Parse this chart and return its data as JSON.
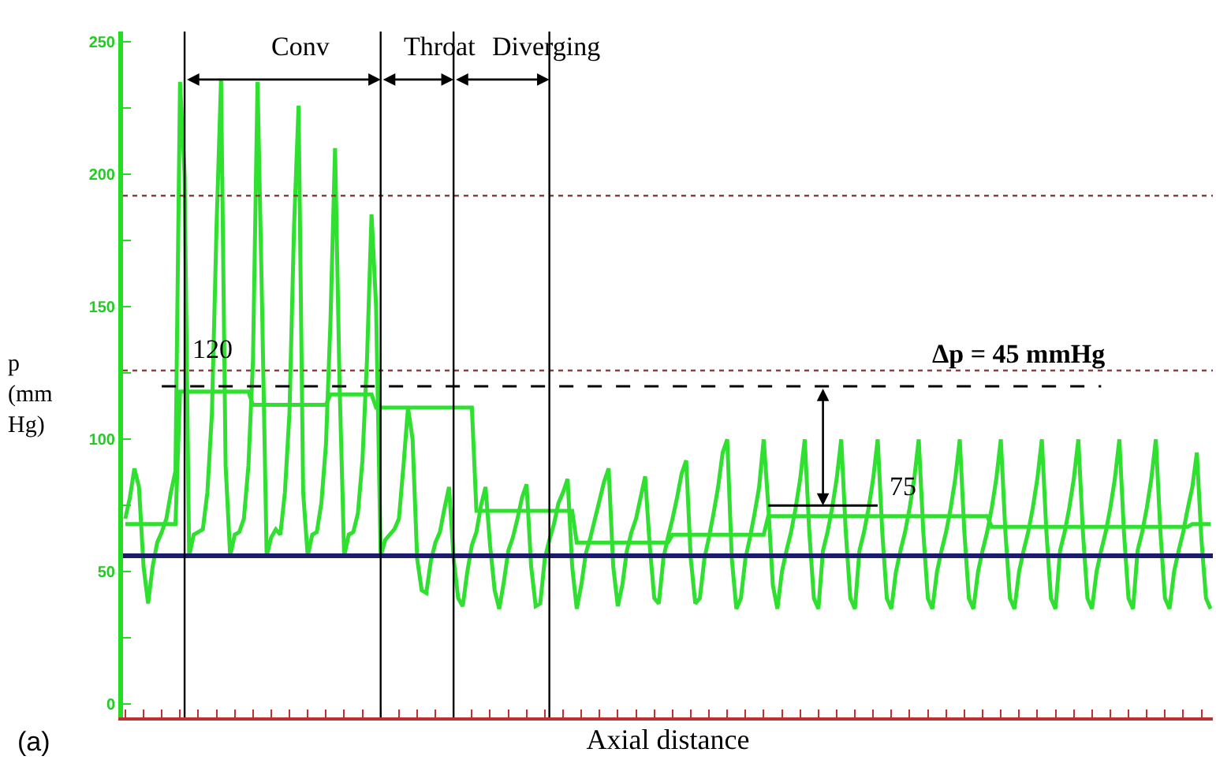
{
  "chart_data": {
    "type": "line",
    "xlabel": "Axial distance",
    "ylabel": "p (mm Hg)",
    "marker": "none",
    "grid": false,
    "ylim": [
      -5,
      254
    ],
    "yticks": [
      0,
      {
        "value": 25,
        "label": null
      },
      50,
      {
        "value": 75,
        "label": null
      },
      100,
      {
        "value": 125,
        "label": null
      },
      150,
      {
        "value": 175,
        "label": null
      },
      200,
      {
        "value": 225,
        "label": null
      },
      250
    ],
    "categories": [
      null,
      null,
      null,
      null,
      null,
      null,
      null,
      null,
      null,
      null,
      null,
      null,
      null,
      null,
      null,
      null,
      null,
      null,
      null,
      null,
      null,
      null,
      null,
      null,
      null,
      null,
      null,
      null,
      null,
      null,
      null,
      null,
      null,
      null,
      null,
      null,
      null,
      null,
      null,
      null,
      null,
      null,
      null,
      null,
      null,
      null,
      null,
      null,
      null,
      null,
      null,
      null,
      null,
      null,
      null,
      null,
      null,
      null,
      null,
      null,
      null,
      null,
      null,
      null,
      null,
      null,
      null,
      null,
      null,
      null,
      null,
      null,
      null,
      null,
      null,
      null,
      null,
      null,
      null,
      null,
      null,
      null,
      null,
      null,
      null,
      null,
      null,
      null,
      null,
      null,
      null,
      null,
      null,
      null,
      null,
      null,
      null,
      null,
      null,
      null,
      null,
      null,
      null,
      null,
      null,
      null,
      null,
      null,
      null,
      null,
      null,
      null,
      null,
      null,
      null,
      null,
      null,
      null,
      null,
      null,
      null,
      null,
      null,
      null,
      null,
      null,
      null,
      null,
      null,
      null,
      null,
      null,
      null,
      null,
      null,
      null,
      null,
      null,
      null,
      null,
      null,
      null,
      null,
      null,
      null,
      null,
      null,
      null,
      null,
      null,
      null,
      null,
      null,
      null,
      null,
      null,
      null,
      null,
      null,
      null,
      null,
      null,
      null,
      null,
      null,
      null,
      null,
      null,
      null,
      null,
      null,
      null,
      null,
      null,
      null,
      null,
      null,
      null,
      null,
      null,
      null,
      null,
      null,
      null,
      null,
      null,
      null,
      null,
      null,
      null,
      null,
      null,
      null,
      null,
      null,
      null,
      null,
      null,
      null,
      null,
      null,
      null,
      null,
      null,
      null,
      null,
      null,
      null,
      null,
      null,
      null,
      null,
      null,
      null,
      null,
      null,
      null,
      null,
      null,
      null,
      null,
      null,
      null,
      null,
      null,
      null,
      null,
      null,
      null,
      null,
      null,
      null,
      null,
      null,
      null,
      null,
      null,
      null,
      null
    ],
    "series": [
      {
        "color": "#30e030",
        "values": [
          70,
          78,
          89,
          82,
          52,
          38,
          52,
          61,
          65,
          70,
          80,
          88,
          235,
          200,
          56,
          64,
          65,
          66,
          80,
          110,
          180,
          236,
          90,
          56,
          64,
          65,
          70,
          90,
          130,
          235,
          150,
          56,
          63,
          66,
          64,
          80,
          110,
          180,
          226,
          80,
          56,
          64,
          65,
          76,
          98,
          145,
          210,
          120,
          56,
          64,
          65,
          72,
          92,
          130,
          185,
          150,
          56,
          62,
          64,
          66,
          70,
          90,
          112,
          100,
          55,
          43,
          42,
          54,
          61,
          65,
          74,
          82,
          55,
          40,
          37,
          50,
          60,
          65,
          75,
          82,
          60,
          43,
          36,
          46,
          58,
          63,
          70,
          78,
          83,
          52,
          37,
          38,
          55,
          62,
          68,
          76,
          80,
          85,
          52,
          36,
          45,
          57,
          63,
          70,
          77,
          84,
          89,
          52,
          37,
          45,
          58,
          65,
          70,
          78,
          86,
          60,
          40,
          38,
          55,
          63,
          70,
          78,
          87,
          92,
          55,
          38,
          40,
          55,
          63,
          72,
          82,
          95,
          100,
          55,
          36,
          40,
          55,
          63,
          72,
          82,
          100,
          75,
          45,
          36,
          50,
          58,
          65,
          74,
          85,
          100,
          65,
          40,
          36,
          58,
          65,
          74,
          85,
          100,
          65,
          40,
          36,
          58,
          65,
          74,
          85,
          100,
          65,
          40,
          36,
          50,
          58,
          65,
          74,
          85,
          100,
          65,
          40,
          36,
          50,
          58,
          65,
          74,
          85,
          100,
          65,
          40,
          36,
          50,
          58,
          65,
          74,
          85,
          100,
          65,
          40,
          36,
          50,
          58,
          65,
          74,
          85,
          100,
          65,
          40,
          36,
          58,
          65,
          74,
          85,
          100,
          65,
          40,
          36,
          50,
          58,
          65,
          74,
          85,
          100,
          65,
          40,
          36,
          58,
          65,
          74,
          85,
          100,
          65,
          40,
          36,
          50,
          58,
          65,
          74,
          82,
          95,
          62,
          40,
          36
        ]
      },
      {
        "color": "#30e030",
        "values": [
          68,
          68,
          68,
          68,
          68,
          68,
          68,
          68,
          68,
          68,
          68,
          68,
          118,
          118,
          118,
          118,
          118,
          118,
          118,
          118,
          118,
          118,
          118,
          118,
          118,
          118,
          118,
          118,
          113,
          113,
          113,
          113,
          113,
          113,
          113,
          113,
          113,
          113,
          113,
          113,
          113,
          113,
          113,
          113,
          113,
          117,
          117,
          117,
          117,
          117,
          117,
          117,
          117,
          117,
          117,
          112,
          112,
          112,
          112,
          112,
          112,
          112,
          112,
          112,
          112,
          112,
          112,
          112,
          112,
          112,
          112,
          112,
          112,
          112,
          112,
          112,
          112,
          73,
          73,
          73,
          73,
          73,
          73,
          73,
          73,
          73,
          73,
          73,
          73,
          73,
          73,
          73,
          73,
          73,
          73,
          73,
          73,
          73,
          73,
          61,
          61,
          61,
          61,
          61,
          61,
          61,
          61,
          61,
          61,
          61,
          61,
          61,
          61,
          61,
          61,
          61,
          61,
          61,
          61,
          61,
          64,
          64,
          64,
          64,
          64,
          64,
          64,
          64,
          64,
          64,
          64,
          64,
          64,
          64,
          64,
          64,
          64,
          64,
          64,
          64,
          64,
          71,
          71,
          71,
          71,
          71,
          71,
          71,
          71,
          71,
          71,
          71,
          71,
          71,
          71,
          71,
          71,
          71,
          71,
          71,
          71,
          71,
          71,
          71,
          71,
          71,
          71,
          71,
          71,
          71,
          71,
          71,
          71,
          71,
          71,
          71,
          71,
          71,
          71,
          71,
          71,
          71,
          71,
          71,
          71,
          71,
          71,
          71,
          71,
          71,
          67,
          67,
          67,
          67,
          67,
          67,
          67,
          67,
          67,
          67,
          67,
          67,
          67,
          67,
          67,
          67,
          67,
          67,
          67,
          67,
          67,
          67,
          67,
          67,
          67,
          67,
          67,
          67,
          67,
          67,
          67,
          67,
          67,
          67,
          67,
          67,
          67,
          67,
          67,
          67,
          67,
          67,
          67,
          67,
          68,
          68,
          68,
          68,
          68
        ]
      },
      {
        "color": "#000000",
        "line_style": "dashed",
        "values": [
          null,
          null,
          null,
          null,
          null,
          null,
          null,
          null,
          120,
          120,
          120,
          120,
          120,
          120,
          120,
          120,
          120,
          120,
          120,
          120,
          120,
          120,
          120,
          120,
          120,
          120,
          120,
          120,
          120,
          120,
          120,
          120,
          120,
          120,
          120,
          120,
          120,
          120,
          120,
          120,
          120,
          120,
          120,
          120,
          120,
          120,
          120,
          120,
          120,
          120,
          120,
          120,
          120,
          120,
          120,
          120,
          120,
          120,
          120,
          120,
          120,
          120,
          120,
          120,
          120,
          120,
          120,
          120,
          120,
          120,
          120,
          120,
          120,
          120,
          120,
          120,
          120,
          120,
          120,
          120,
          120,
          120,
          120,
          120,
          120,
          120,
          120,
          120,
          120,
          120,
          120,
          120,
          120,
          120,
          120,
          120,
          120,
          120,
          120,
          120,
          120,
          120,
          120,
          120,
          120,
          120,
          120,
          120,
          120,
          120,
          120,
          120,
          120,
          120,
          120,
          120,
          120,
          120,
          120,
          120,
          120,
          120,
          120,
          120,
          120,
          120,
          120,
          120,
          120,
          120,
          120,
          120,
          120,
          120,
          120,
          120,
          120,
          120,
          120,
          120,
          120,
          120,
          120,
          120,
          120,
          120,
          120,
          120,
          120,
          120,
          120,
          120,
          120,
          120,
          120,
          120,
          120,
          120,
          120,
          120,
          120,
          120,
          120,
          120,
          120,
          120,
          120,
          120,
          120,
          120,
          120,
          120,
          120,
          120,
          120,
          120,
          120,
          120,
          120,
          120,
          120,
          120,
          120,
          120,
          120,
          120,
          120,
          120,
          120,
          120,
          120,
          120,
          120,
          120,
          120,
          120,
          120,
          120,
          120,
          120,
          120,
          120,
          120,
          120,
          120,
          120,
          120,
          120,
          120,
          120,
          120,
          120,
          120,
          120,
          120,
          null,
          null,
          null,
          null,
          null,
          null,
          null,
          null,
          null,
          null,
          null,
          null,
          null,
          null,
          null,
          null,
          null,
          null,
          null,
          null,
          null,
          null,
          null,
          null
        ]
      },
      {
        "color": "#000000",
        "values": [
          null,
          null,
          null,
          null,
          null,
          null,
          null,
          null,
          null,
          null,
          null,
          null,
          null,
          null,
          null,
          null,
          null,
          null,
          null,
          null,
          null,
          null,
          null,
          null,
          null,
          null,
          null,
          null,
          null,
          null,
          null,
          null,
          null,
          null,
          null,
          null,
          null,
          null,
          null,
          null,
          null,
          null,
          null,
          null,
          null,
          null,
          null,
          null,
          null,
          null,
          null,
          null,
          null,
          null,
          null,
          null,
          null,
          null,
          null,
          null,
          null,
          null,
          null,
          null,
          null,
          null,
          null,
          null,
          null,
          null,
          null,
          null,
          null,
          null,
          null,
          null,
          null,
          null,
          null,
          null,
          null,
          null,
          null,
          null,
          null,
          null,
          null,
          null,
          null,
          null,
          null,
          null,
          null,
          null,
          null,
          null,
          null,
          null,
          null,
          null,
          null,
          null,
          null,
          null,
          null,
          null,
          null,
          null,
          null,
          null,
          null,
          null,
          null,
          null,
          null,
          null,
          null,
          null,
          null,
          null,
          null,
          null,
          null,
          null,
          null,
          null,
          null,
          null,
          null,
          null,
          null,
          null,
          null,
          null,
          null,
          null,
          null,
          null,
          null,
          null,
          null,
          75,
          75,
          75,
          75,
          75,
          75,
          75,
          75,
          75,
          75,
          75,
          75,
          75,
          75,
          75,
          75,
          75,
          75,
          75,
          75,
          75,
          75,
          75,
          75,
          75,
          null,
          null,
          null,
          null,
          null,
          null,
          null,
          null,
          null,
          null,
          null,
          null,
          null,
          null,
          null,
          null,
          null,
          null,
          null,
          null,
          null,
          null,
          null,
          null,
          null,
          null,
          null,
          null,
          null,
          null,
          null,
          null,
          null,
          null,
          null,
          null,
          null,
          null,
          null,
          null,
          null,
          null,
          null,
          null,
          null,
          null,
          null,
          null,
          null,
          null,
          null,
          null,
          null,
          null,
          null,
          null,
          null,
          null,
          null,
          null,
          null,
          null,
          null,
          null,
          null,
          null,
          null,
          null,
          null,
          null,
          null,
          null,
          null
        ]
      }
    ],
    "ref_lines": [
      {
        "axis": "y",
        "value": 56,
        "color": "#1c1c6e"
      },
      {
        "axis": "y",
        "value": 192,
        "color": "#8b4040",
        "line_style": "dotted"
      },
      {
        "axis": "y",
        "value": 126,
        "color": "#8b4040",
        "line_style": "dotted"
      }
    ],
    "annotations": [
      "Conv",
      "Throat",
      "Diverging",
      {
        "text": "120",
        "y": 120
      },
      {
        "text": "75",
        "y": 75
      },
      {
        "text": "Δp = 45 mmHg",
        "y": 126
      },
      "(a)"
    ]
  }
}
